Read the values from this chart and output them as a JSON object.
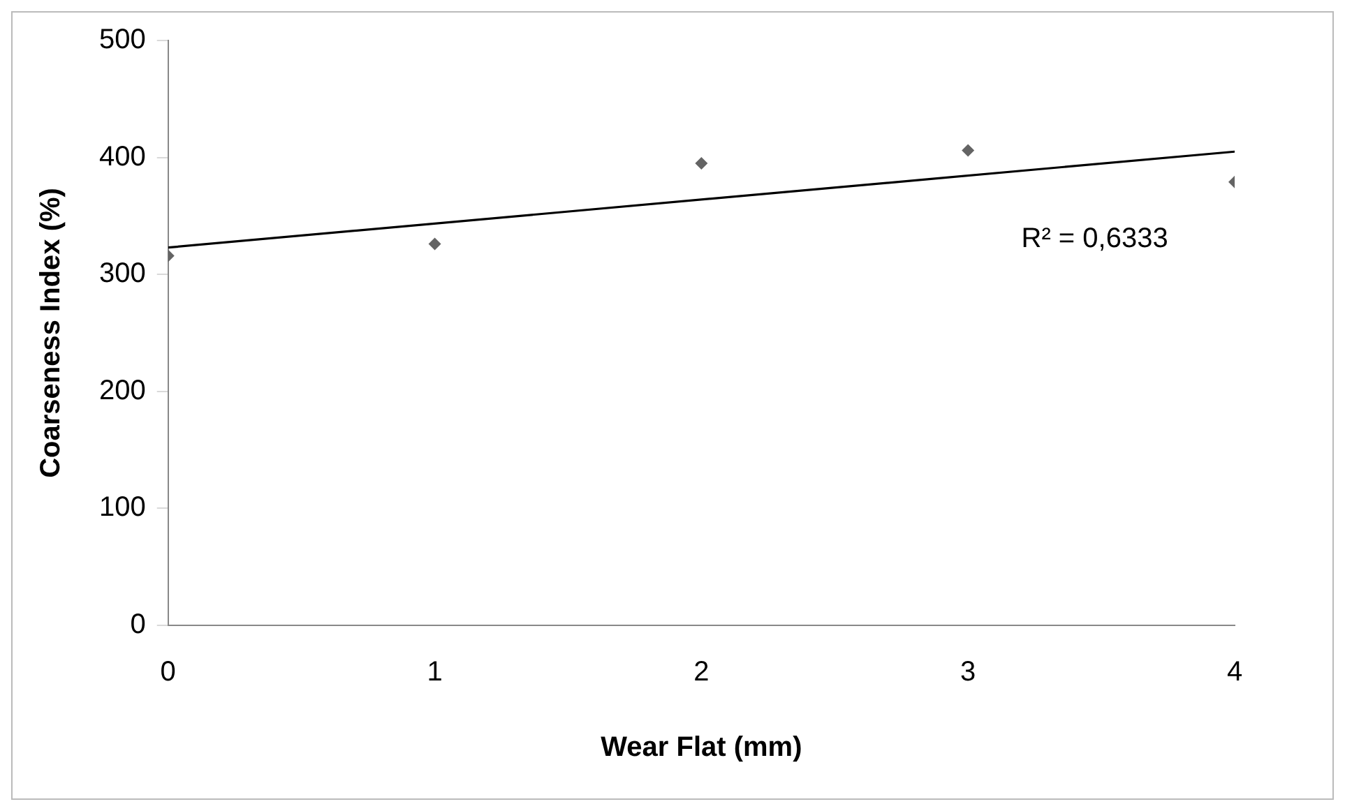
{
  "chart_data": {
    "type": "scatter",
    "xlabel": "Wear Flat (mm)",
    "ylabel": "Coarseness Index (%)",
    "x": [
      0,
      1,
      2,
      3,
      4
    ],
    "series": [
      {
        "type": "scatter",
        "color": "#646464",
        "marker": "diamond",
        "values": [
          316,
          326,
          395,
          406,
          379
        ]
      },
      {
        "type": "line",
        "color": "#000000",
        "x": [
          0,
          4
        ],
        "values": [
          323,
          405
        ],
        "line_style": "solid",
        "marker": "none"
      }
    ],
    "xlim": [
      0,
      4
    ],
    "xticks": [
      0,
      1,
      2,
      3,
      4
    ],
    "ylim": [
      0,
      500
    ],
    "yticks": [
      0,
      100,
      200,
      300,
      400,
      500
    ],
    "grid": false,
    "legend": false,
    "annotations": [
      "R² = 0,6333"
    ]
  }
}
